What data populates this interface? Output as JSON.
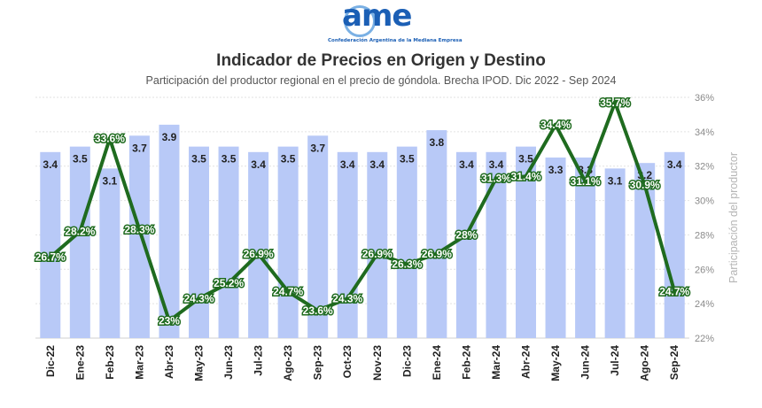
{
  "logo": {
    "word": "ame",
    "tagline": "Confederación Argentina de la Mediana Empresa"
  },
  "header": {
    "title": "Indicador de Precios en Origen y Destino",
    "subtitle": "Participación del productor regional en el precio de góndola. Brecha IPOD. Dic 2022 - Sep 2024"
  },
  "chart_data": {
    "type": "bar",
    "categories": [
      "Dic-22",
      "Ene-23",
      "Feb-23",
      "Mar-23",
      "Abr-23",
      "May-23",
      "Jun-23",
      "Jul-23",
      "Ago-23",
      "Sep-23",
      "Oct-23",
      "Nov-23",
      "Dic-23",
      "Ene-24",
      "Feb-24",
      "Mar-24",
      "Abr-24",
      "May-24",
      "Jun-24",
      "Jul-24",
      "Ago-24",
      "Sep-24"
    ],
    "series": [
      {
        "type": "bar",
        "values": [
          3.4,
          3.5,
          3.1,
          3.7,
          3.9,
          3.5,
          3.5,
          3.4,
          3.5,
          3.7,
          3.4,
          3.4,
          3.5,
          3.8,
          3.4,
          3.4,
          3.5,
          3.3,
          3.3,
          3.1,
          3.2,
          3.4
        ],
        "labels": [
          "3.4",
          "3.5",
          "3.1",
          "3.7",
          "3.9",
          "3.5",
          "3.5",
          "3.4",
          "3.5",
          "3.7",
          "3.4",
          "3.4",
          "3.5",
          "3.8",
          "3.4",
          "3.4",
          "3.5",
          "3.3",
          "3.3",
          "3.1",
          "3.2",
          "3.4"
        ],
        "axis_range": [
          0,
          4.4
        ],
        "color": "#b8c9f7"
      },
      {
        "type": "line",
        "values": [
          26.7,
          28.2,
          33.6,
          28.3,
          23.0,
          24.3,
          25.2,
          26.9,
          24.7,
          23.6,
          24.3,
          26.9,
          26.3,
          26.9,
          28.0,
          31.3,
          31.4,
          34.4,
          31.1,
          35.7,
          30.9,
          24.7
        ],
        "labels": [
          "26.7%",
          "28.2%",
          "33.6%",
          "28.3%",
          "23%",
          "24.3%",
          "25.2%",
          "26.9%",
          "24.7%",
          "23.6%",
          "24.3%",
          "26.9%",
          "26.3%",
          "26.9%",
          "28%",
          "31.3%",
          "31.4%",
          "34.4%",
          "31.1%",
          "35.7%",
          "30.9%",
          "24.7%"
        ],
        "axis": "right",
        "color": "#1f6b1f"
      }
    ],
    "y_right": {
      "label": "Participación del productor",
      "range": [
        22,
        36
      ],
      "ticks": [
        "22%",
        "24%",
        "26%",
        "28%",
        "30%",
        "32%",
        "34%",
        "36%"
      ]
    },
    "grid": true
  }
}
